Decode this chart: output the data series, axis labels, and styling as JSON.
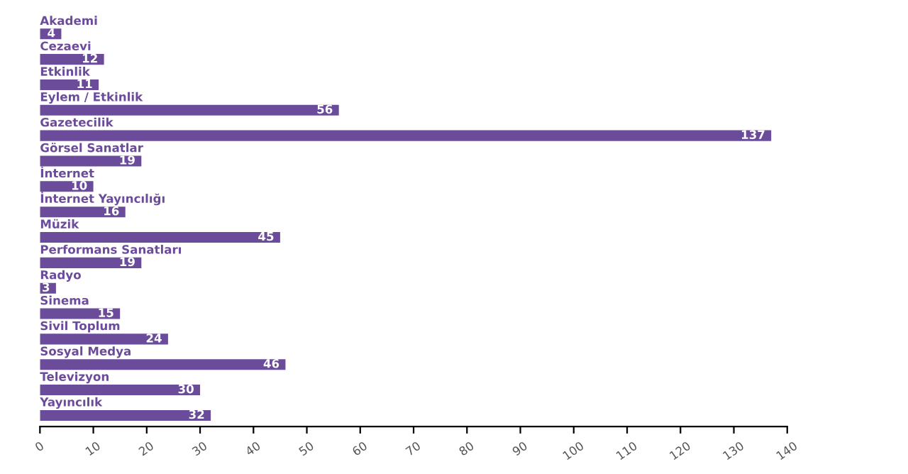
{
  "chart_data": {
    "type": "bar",
    "orientation": "horizontal",
    "categories": [
      "Akademi",
      "Cezaevi",
      "Etkinlik",
      "Eylem / Etkinlik",
      "Gazetecilik",
      "Görsel Sanatlar",
      "İnternet",
      "İnternet Yayıncılığı",
      "Müzik",
      "Performans Sanatları",
      "Radyo",
      "Sinema",
      "Sivil Toplum",
      "Sosyal Medya",
      "Televizyon",
      "Yayıncılık"
    ],
    "values": [
      4,
      12,
      11,
      56,
      137,
      19,
      10,
      16,
      45,
      19,
      3,
      15,
      24,
      46,
      30,
      32
    ],
    "color": "#6b4c9a",
    "data_labels": true,
    "xlim": [
      0,
      140
    ],
    "xticks": [
      0,
      10,
      20,
      30,
      40,
      50,
      60,
      70,
      80,
      90,
      100,
      110,
      120,
      130,
      140
    ],
    "grid": false,
    "legend": false,
    "tick_labels": "x"
  }
}
